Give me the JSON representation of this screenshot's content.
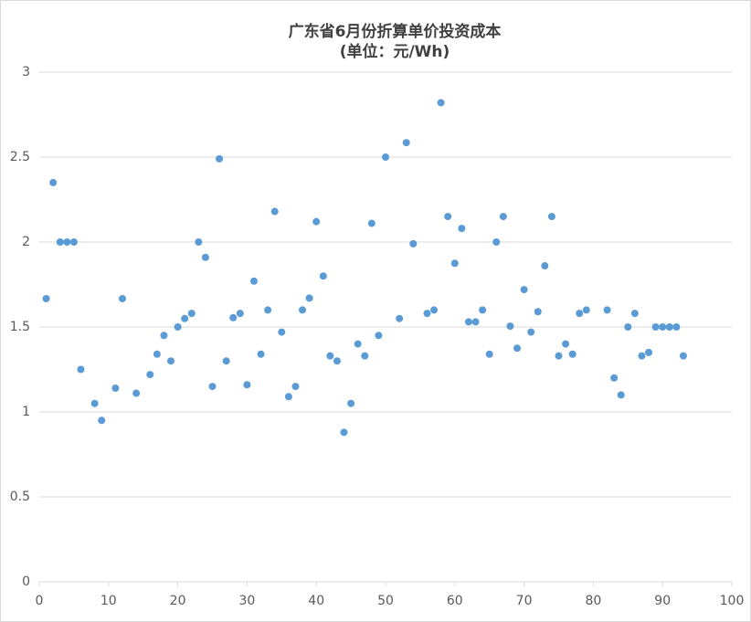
{
  "chart_data": {
    "type": "scatter",
    "title": "广东省6月份折算单价投资成本",
    "subtitle": "(单位：元/Wh)",
    "color": "#5b9bd5",
    "grid": true,
    "x": [
      1,
      2,
      3,
      4,
      5,
      6,
      8,
      9,
      11,
      12,
      14,
      16,
      17,
      18,
      19,
      20,
      21,
      22,
      23,
      24,
      25,
      26,
      27,
      28,
      29,
      30,
      31,
      32,
      33,
      34,
      35,
      36,
      37,
      38,
      39,
      40,
      41,
      42,
      43,
      44,
      45,
      46,
      47,
      48,
      49,
      50,
      52,
      53,
      54,
      56,
      57,
      58,
      59,
      60,
      61,
      62,
      63,
      64,
      65,
      66,
      67,
      68,
      69,
      70,
      71,
      72,
      73,
      74,
      75,
      76,
      77,
      78,
      79,
      82,
      83,
      84,
      85,
      86,
      87,
      88,
      89,
      90,
      91,
      92,
      93
    ],
    "values": [
      1.667,
      2.35,
      2.0,
      2.0,
      2.0,
      1.25,
      1.05,
      0.95,
      1.14,
      1.667,
      1.11,
      1.22,
      1.34,
      1.45,
      1.3,
      1.5,
      1.55,
      1.58,
      2.0,
      1.91,
      1.15,
      2.49,
      1.3,
      1.555,
      1.58,
      1.16,
      1.77,
      1.34,
      1.6,
      2.18,
      1.47,
      1.09,
      1.15,
      1.6,
      1.67,
      2.12,
      1.8,
      1.33,
      1.3,
      0.88,
      1.05,
      1.4,
      1.33,
      2.11,
      1.45,
      2.5,
      1.55,
      2.585,
      1.99,
      1.58,
      1.6,
      2.82,
      2.15,
      1.875,
      2.08,
      1.53,
      1.53,
      1.6,
      1.34,
      2.0,
      2.15,
      1.505,
      1.375,
      1.72,
      1.47,
      1.59,
      1.86,
      2.15,
      1.33,
      1.4,
      1.34,
      1.58,
      1.6,
      1.6,
      1.2,
      1.1,
      1.5,
      1.58,
      1.33,
      1.35,
      1.5,
      1.5,
      1.5,
      1.5,
      1.33
    ],
    "xlim": [
      0,
      100
    ],
    "xticks": [
      0,
      10,
      20,
      30,
      40,
      50,
      60,
      70,
      80,
      90,
      100
    ],
    "ylim": [
      0,
      3
    ],
    "yticks": [
      0,
      0.5,
      1,
      1.5,
      2,
      2.5,
      3
    ]
  }
}
